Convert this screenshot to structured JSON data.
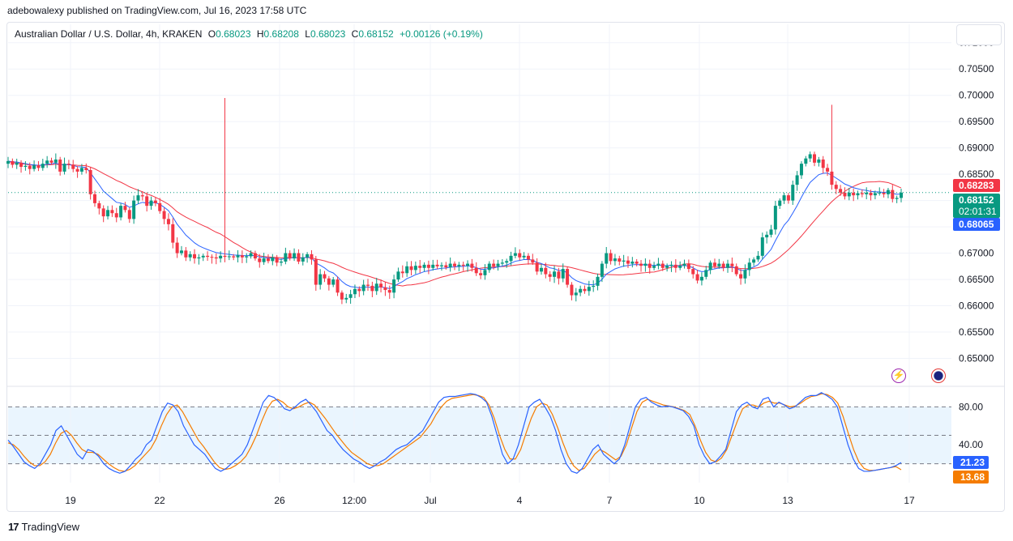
{
  "header": {
    "published_by": "adebowalexy published on TradingView.com, Jul 16, 2023 17:58 UTC"
  },
  "legend": {
    "symbol": "Australian Dollar / U.S. Dollar, 4h, KRAKEN",
    "open_label": "O",
    "open": "0.68023",
    "high_label": "H",
    "high": "0.68208",
    "low_label": "L",
    "low": "0.68023",
    "close_label": "C",
    "close": "0.68152",
    "change": "+0.00126 (+0.19%)"
  },
  "footer": {
    "brand": "TradingView",
    "logo": "17"
  },
  "colors": {
    "up": "#089981",
    "down": "#f23645",
    "ma_fast": "#2962ff",
    "ma_slow": "#f23645",
    "stoch_k": "#2962ff",
    "stoch_d": "#f57c00",
    "band_fill": "#e3f2fd",
    "grid": "#f0f3fa"
  },
  "icons": [
    "lightning-icon",
    "flag-icon"
  ],
  "chart_data": [
    {
      "type": "candlestick",
      "title": "Australian Dollar / U.S. Dollar, 4h, KRAKEN",
      "ylim": [
        0.645,
        0.7135
      ],
      "y_ticks": [
        "0.71000",
        "0.70500",
        "0.70000",
        "0.69500",
        "0.69000",
        "0.68500",
        "0.68000",
        "0.67500",
        "0.67000",
        "0.66500",
        "0.66000",
        "0.65500",
        "0.65000"
      ],
      "x_ticks": [
        "19",
        "22",
        "26",
        "12:00",
        "Jul",
        "4",
        "7",
        "10",
        "13",
        "17"
      ],
      "price_labels": [
        {
          "text": "0.68283",
          "value": 0.68283,
          "color": "#f23645"
        },
        {
          "text": "0.68152",
          "value": 0.68152,
          "color": "#089981",
          "sub": "02:01:31"
        },
        {
          "text": "0.68065",
          "value": 0.68065,
          "color": "#2962ff"
        }
      ],
      "ohlc_close": [
        0.6875,
        0.6868,
        0.6872,
        0.6864,
        0.6866,
        0.686,
        0.6867,
        0.6862,
        0.687,
        0.6876,
        0.6872,
        0.6878,
        0.6855,
        0.687,
        0.6868,
        0.686,
        0.6855,
        0.6862,
        0.6858,
        0.6812,
        0.6795,
        0.6785,
        0.677,
        0.6782,
        0.6776,
        0.6768,
        0.679,
        0.6782,
        0.6765,
        0.68,
        0.681,
        0.6808,
        0.679,
        0.68,
        0.6795,
        0.678,
        0.6765,
        0.6755,
        0.672,
        0.67,
        0.6705,
        0.6692,
        0.6698,
        0.669,
        0.6692,
        0.6695,
        0.6693,
        0.6692,
        0.669,
        0.6695,
        0.6693,
        0.6694,
        0.6692,
        0.6696,
        0.6692,
        0.6694,
        0.67,
        0.669,
        0.6683,
        0.669,
        0.6685,
        0.6692,
        0.6682,
        0.6684,
        0.67,
        0.669,
        0.67,
        0.6684,
        0.6692,
        0.6698,
        0.6688,
        0.664,
        0.666,
        0.6652,
        0.664,
        0.665,
        0.6625,
        0.6612,
        0.6615,
        0.6622,
        0.6632,
        0.6628,
        0.664,
        0.6638,
        0.6628,
        0.6642,
        0.6635,
        0.663,
        0.6625,
        0.665,
        0.6665,
        0.6662,
        0.6675,
        0.6668,
        0.6676,
        0.6672,
        0.6678,
        0.6672,
        0.6678,
        0.6675,
        0.6677,
        0.6673,
        0.668,
        0.6675,
        0.6678,
        0.6676,
        0.668,
        0.6672,
        0.6662,
        0.6658,
        0.6668,
        0.668,
        0.6675,
        0.668,
        0.6682,
        0.6685,
        0.6695,
        0.67,
        0.6692,
        0.6695,
        0.6688,
        0.6682,
        0.6665,
        0.6672,
        0.666,
        0.6655,
        0.6665,
        0.6652,
        0.667,
        0.664,
        0.662,
        0.6625,
        0.6632,
        0.6628,
        0.6636,
        0.6638,
        0.6655,
        0.668,
        0.67,
        0.6685,
        0.669,
        0.6684,
        0.6686,
        0.668,
        0.6684,
        0.668,
        0.6676,
        0.668,
        0.6672,
        0.6676,
        0.668,
        0.6672,
        0.6676,
        0.6678,
        0.6672,
        0.6676,
        0.668,
        0.667,
        0.666,
        0.6648,
        0.6655,
        0.6668,
        0.6682,
        0.6675,
        0.668,
        0.6672,
        0.668,
        0.6675,
        0.666,
        0.6652,
        0.6668,
        0.6682,
        0.6688,
        0.6695,
        0.673,
        0.6735,
        0.6745,
        0.679,
        0.68,
        0.681,
        0.68,
        0.683,
        0.6848,
        0.687,
        0.688,
        0.6888,
        0.6872,
        0.6878,
        0.6862,
        0.6855,
        0.683,
        0.6822,
        0.6815,
        0.6808,
        0.6815,
        0.681,
        0.6814,
        0.6812,
        0.6815,
        0.681,
        0.6814,
        0.6815,
        0.6812,
        0.682,
        0.6803,
        0.6805,
        0.6815
      ]
    },
    {
      "type": "line",
      "title": "Stochastic",
      "ylim": [
        0,
        100
      ],
      "y_ticks": [
        "80.00",
        "40.00"
      ],
      "band": [
        20,
        80
      ],
      "mid": 50,
      "series": [
        {
          "value_label": "21.23",
          "color": "#2962ff"
        },
        {
          "value_label": "13.68",
          "color": "#f57c00"
        }
      ],
      "k": [
        45,
        38,
        30,
        22,
        18,
        15,
        20,
        30,
        40,
        55,
        60,
        50,
        40,
        30,
        25,
        35,
        33,
        28,
        20,
        15,
        12,
        10,
        12,
        18,
        25,
        30,
        40,
        45,
        60,
        75,
        84,
        82,
        75,
        60,
        50,
        40,
        35,
        30,
        22,
        15,
        12,
        15,
        20,
        25,
        30,
        40,
        55,
        70,
        85,
        92,
        90,
        85,
        78,
        76,
        80,
        85,
        88,
        82,
        75,
        65,
        55,
        50,
        42,
        35,
        30,
        25,
        22,
        18,
        15,
        18,
        22,
        25,
        30,
        35,
        38,
        40,
        45,
        50,
        55,
        65,
        75,
        85,
        90,
        91,
        91,
        92,
        93,
        94,
        93,
        90,
        85,
        70,
        50,
        30,
        20,
        25,
        40,
        60,
        80,
        85,
        88,
        80,
        70,
        55,
        35,
        20,
        12,
        10,
        15,
        25,
        35,
        40,
        30,
        25,
        20,
        25,
        40,
        60,
        80,
        88,
        90,
        85,
        82,
        80,
        81,
        80,
        78,
        76,
        70,
        60,
        40,
        28,
        20,
        22,
        28,
        35,
        55,
        75,
        82,
        85,
        80,
        78,
        88,
        90,
        80,
        85,
        82,
        78,
        80,
        85,
        90,
        92,
        92,
        95,
        92,
        88,
        80,
        60,
        40,
        25,
        15,
        12,
        12,
        13,
        14,
        15,
        16,
        18,
        21.23
      ],
      "d": [
        42,
        40,
        35,
        28,
        22,
        18,
        18,
        22,
        30,
        42,
        52,
        55,
        50,
        42,
        35,
        32,
        32,
        30,
        25,
        20,
        16,
        13,
        12,
        14,
        18,
        24,
        30,
        36,
        46,
        60,
        72,
        80,
        82,
        75,
        65,
        55,
        45,
        38,
        30,
        22,
        16,
        14,
        15,
        18,
        22,
        28,
        38,
        50,
        65,
        78,
        86,
        88,
        85,
        80,
        78,
        80,
        83,
        85,
        82,
        75,
        68,
        60,
        52,
        45,
        38,
        32,
        28,
        24,
        20,
        18,
        18,
        20,
        24,
        28,
        32,
        36,
        40,
        44,
        48,
        55,
        62,
        72,
        80,
        86,
        89,
        90,
        91,
        92,
        93,
        92,
        90,
        82,
        68,
        50,
        35,
        25,
        25,
        35,
        52,
        68,
        80,
        84,
        82,
        72,
        58,
        42,
        28,
        18,
        13,
        15,
        22,
        30,
        35,
        32,
        28,
        24,
        28,
        40,
        58,
        75,
        85,
        88,
        86,
        84,
        82,
        81,
        80,
        78,
        76,
        72,
        60,
        45,
        32,
        24,
        22,
        26,
        35,
        50,
        65,
        78,
        82,
        82,
        80,
        84,
        86,
        84,
        84,
        82,
        80,
        81,
        84,
        88,
        91,
        92,
        94,
        93,
        90,
        84,
        70,
        52,
        35,
        22,
        15,
        13,
        13,
        14,
        15,
        16,
        17,
        13.68
      ]
    }
  ]
}
